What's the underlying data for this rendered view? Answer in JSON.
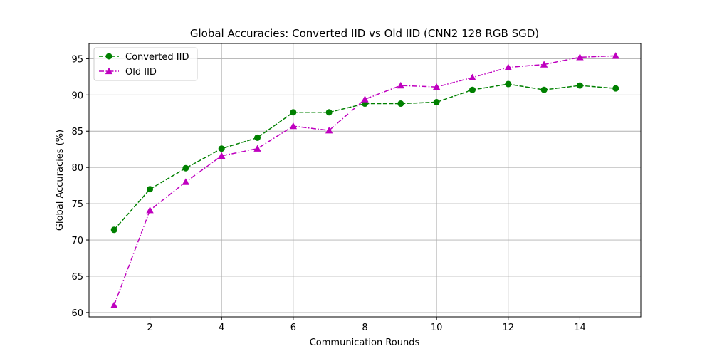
{
  "chart_data": {
    "type": "line",
    "title": "Global Accuracies: Converted IID vs Old IID (CNN2 128 RGB SGD)",
    "xlabel": "Communication Rounds",
    "ylabel": "Global Accuracies (%)",
    "xlim": [
      0.3,
      15.7
    ],
    "ylim": [
      59.4,
      97.1
    ],
    "xticks": [
      2,
      4,
      6,
      8,
      10,
      12,
      14
    ],
    "yticks": [
      60,
      65,
      70,
      75,
      80,
      85,
      90,
      95
    ],
    "grid": true,
    "legend_position": "upper-left",
    "x": [
      1,
      2,
      3,
      4,
      5,
      6,
      7,
      8,
      9,
      10,
      11,
      12,
      13,
      14,
      15
    ],
    "series": [
      {
        "name": "Converted IID",
        "color": "#008000",
        "marker": "circle",
        "line_style": "dashed",
        "values": [
          71.4,
          77.0,
          79.9,
          82.6,
          84.1,
          87.6,
          87.6,
          88.8,
          88.8,
          89.0,
          90.7,
          91.5,
          90.7,
          91.3,
          90.9
        ]
      },
      {
        "name": "Old IID",
        "color": "#bf00bf",
        "marker": "triangle",
        "line_style": "dashdot",
        "values": [
          61.0,
          74.1,
          78.0,
          81.6,
          82.6,
          85.7,
          85.1,
          89.4,
          91.3,
          91.1,
          92.4,
          93.8,
          94.2,
          95.2,
          95.4
        ]
      }
    ]
  }
}
